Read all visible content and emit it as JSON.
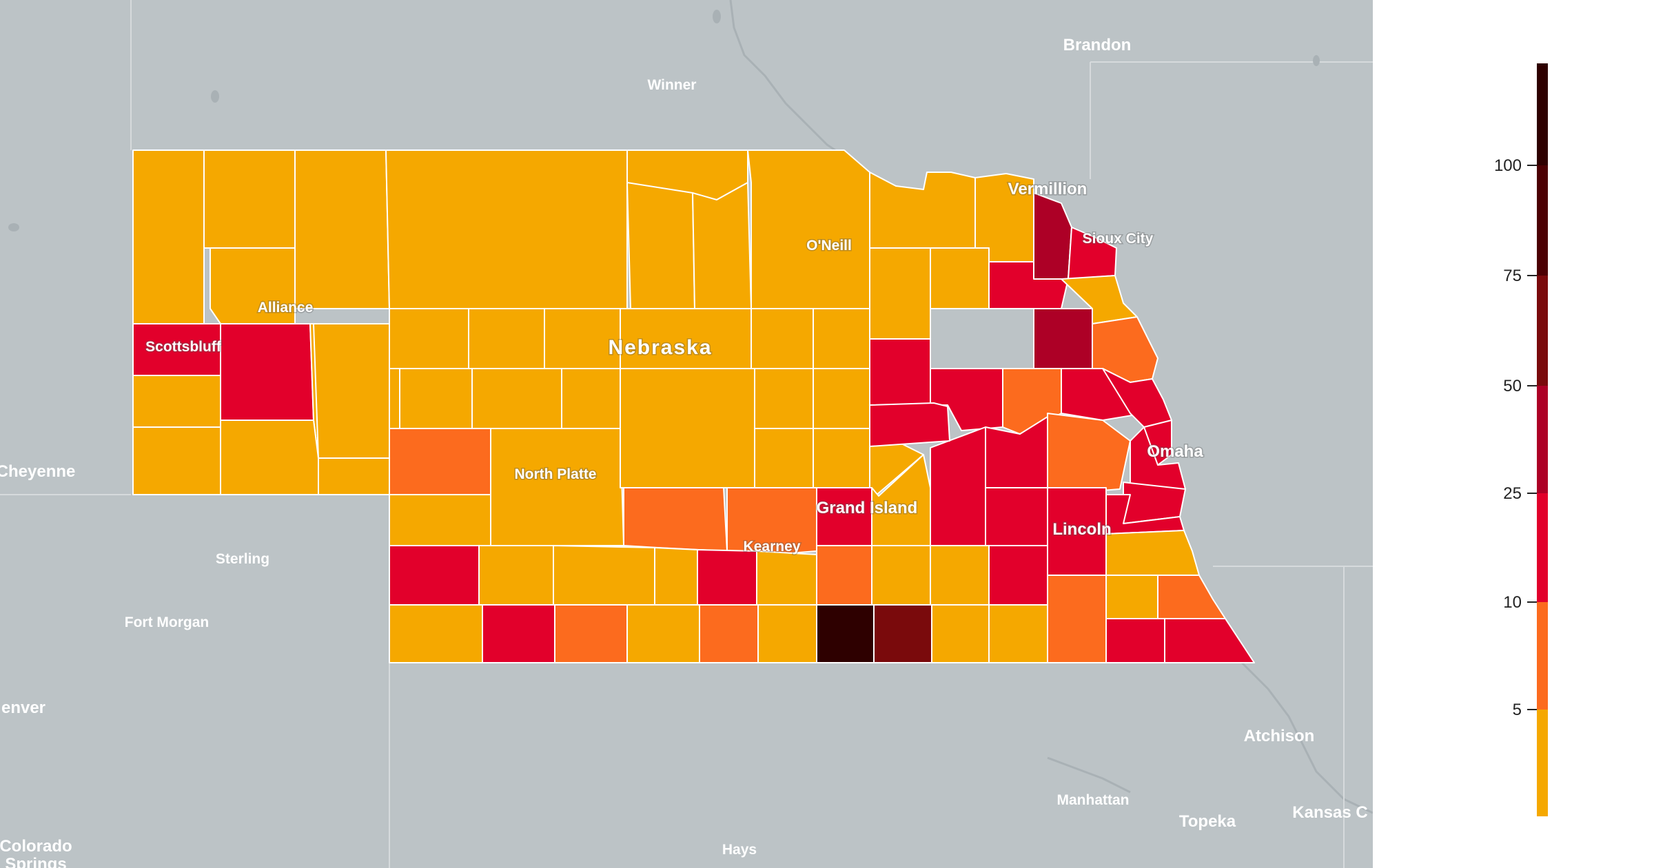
{
  "map": {
    "state_label": "Nebraska",
    "labels": {
      "brandon": "Brandon",
      "winner": "Winner",
      "vermillion": "Vermillion",
      "sioux_city": "Sioux City",
      "oneill": "O'Neill",
      "alliance": "Alliance",
      "scottsbluff": "Scottsbluff",
      "cheyenne": "Cheyenne",
      "north_platte": "North Platte",
      "omaha": "Omaha",
      "grand_island": "Grand Island",
      "kearney": "Kearney",
      "lincoln": "Lincoln",
      "sterling": "Sterling",
      "fort_morgan": "Fort Morgan",
      "denver": "enver",
      "atchison": "Atchison",
      "manhattan": "Manhattan",
      "topeka": "Topeka",
      "kansas_city": "Kansas C",
      "hays": "Hays",
      "colorado_springs": "Colorado",
      "colorado_springs_2": "Springs"
    }
  },
  "legend": {
    "ticks": [
      "100",
      "75",
      "50",
      "25",
      "10",
      "5"
    ],
    "colors": {
      "lt5": "#f5a800",
      "5to10": "#fc6b1e",
      "10to25": "#e2002b",
      "25to50": "#ad0026",
      "50to75": "#7a0a0c",
      "75to100": "#4c0003",
      "gt100": "#2e0000"
    }
  }
}
